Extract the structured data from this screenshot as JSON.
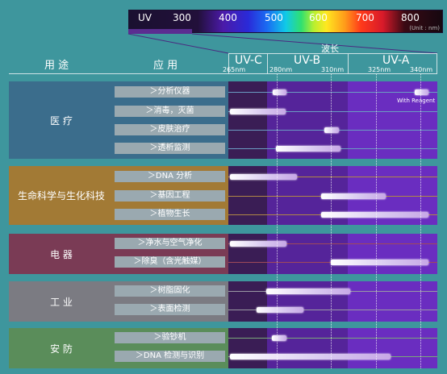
{
  "spectrum": {
    "ticks": [
      "UV",
      "300",
      "400",
      "500",
      "600",
      "700",
      "800"
    ],
    "unit": "(Unit : nm)"
  },
  "header": {
    "col_use": "用 途",
    "col_app": "应 用",
    "wavelength_title": "波长",
    "bands": [
      "UV-C",
      "UV-B",
      "UV-A"
    ],
    "wavelengths": [
      "265nm",
      "280nm",
      "310nm",
      "325nm",
      "340nm"
    ]
  },
  "note": "With Reagent",
  "sections": [
    {
      "label": "医 疗",
      "rows": [
        "＞分析仪器",
        "＞消毒，灭菌",
        "＞皮肤治疗",
        "＞透析监测"
      ]
    },
    {
      "label": "生命科学与生化科技",
      "rows": [
        "＞DNA 分析",
        "＞基因工程",
        "＞植物生长"
      ]
    },
    {
      "label": "电 器",
      "rows": [
        "＞净水与空气净化",
        "＞除臭（含光触媒）"
      ]
    },
    {
      "label": "工 业",
      "rows": [
        "＞树脂固化",
        "＞表面检测"
      ]
    },
    {
      "label": "安 防",
      "rows": [
        "＞验钞机",
        "＞DNA 检测与识别"
      ]
    }
  ],
  "colors": {
    "medical": "#3b6d8c",
    "life_science": "#a27a35",
    "appliance": "#7a3b55",
    "industry": "#7b7b82",
    "security": "#5a8d5a",
    "uvc": "#3a1d55",
    "uvb": "#55249a",
    "uva": "#6a2dc0"
  }
}
